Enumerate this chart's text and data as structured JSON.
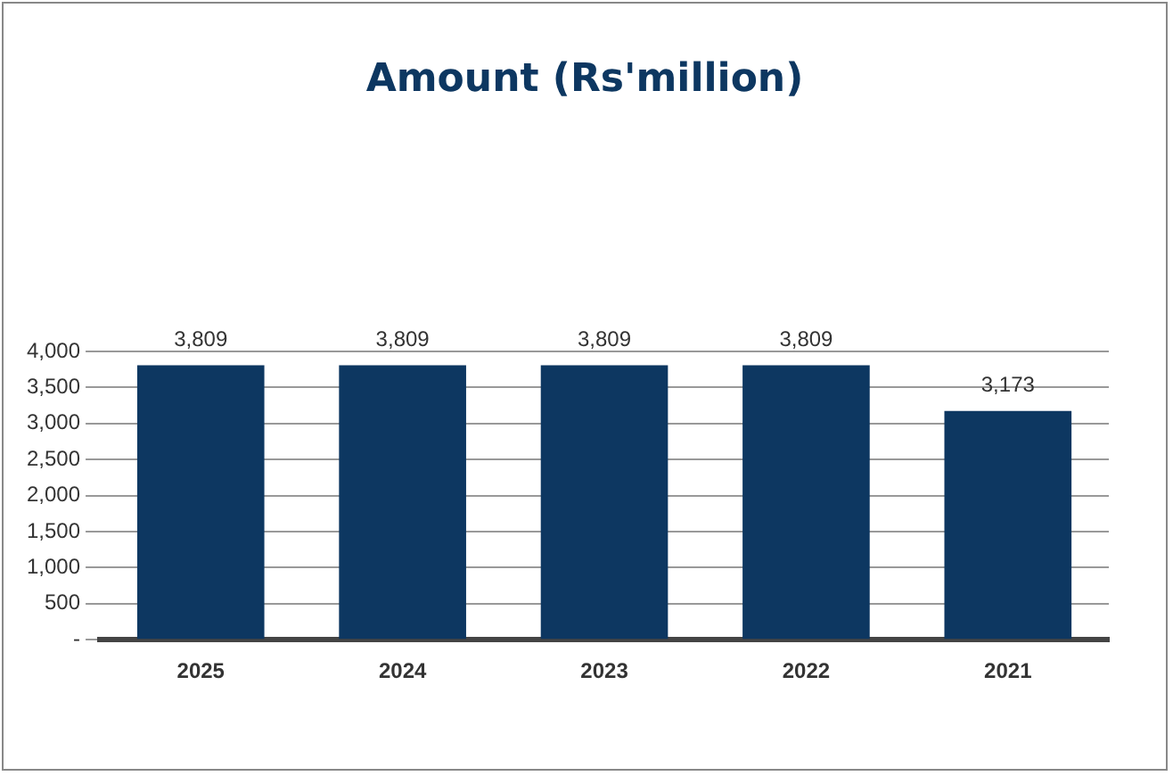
{
  "chart_data": {
    "type": "bar",
    "title": "Amount (Rs'million)",
    "categories": [
      "2025",
      "2024",
      "2023",
      "2022",
      "2021"
    ],
    "values": [
      3809,
      3809,
      3809,
      3809,
      3173
    ],
    "value_labels": [
      "3,809",
      "3,809",
      "3,809",
      "3,809",
      "3,173"
    ],
    "color": "#0d3761",
    "ylim": [
      0,
      4000
    ],
    "yticks": [
      {
        "value": 0,
        "label": "-"
      },
      500,
      {
        "value": 1000,
        "label": "1,000"
      },
      {
        "value": 1500,
        "label": "1,500"
      },
      {
        "value": 2000,
        "label": "2,000"
      },
      {
        "value": 2500,
        "label": "2,500"
      },
      {
        "value": 3000,
        "label": "3,000"
      },
      {
        "value": 3500,
        "label": "3,500"
      },
      {
        "value": 4000,
        "label": "4,000"
      }
    ],
    "grid": "y"
  }
}
